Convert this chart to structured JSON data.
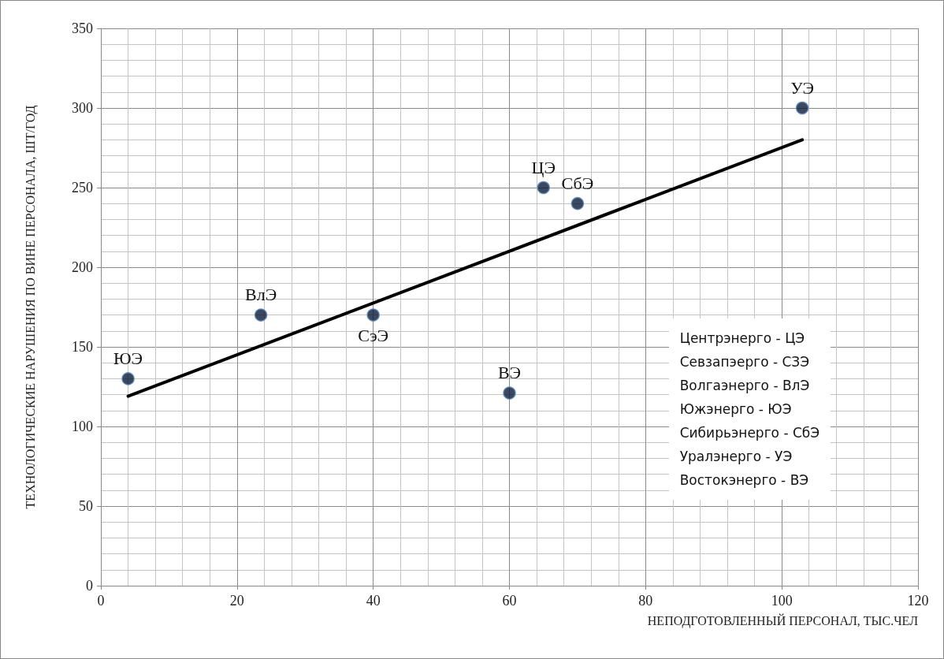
{
  "chart_data": {
    "type": "scatter",
    "xlabel": "НЕПОДГОТОВЛЕННЫЙ ПЕРСОНАЛ, ТЫС.ЧЕЛ",
    "ylabel": "ТЕХНОЛОГИЧЕСКИЕ НАРУШЕНИЯ ПО ВИНЕ ПЕРСОНАЛА, ШТ/ГОД",
    "xlim": [
      0,
      120
    ],
    "xticks": [
      0,
      20,
      40,
      60,
      80,
      100,
      120
    ],
    "ylim": [
      0,
      350
    ],
    "yticks": [
      0,
      50,
      100,
      150,
      200,
      250,
      300,
      350
    ],
    "grid": true,
    "marker": "circle",
    "series": [
      {
        "color": "#0b1a36",
        "x": [
          4,
          23.5,
          40,
          60,
          65,
          70,
          103
        ],
        "values": [
          130,
          170,
          170,
          121,
          250,
          240,
          300
        ]
      },
      {
        "type": "line",
        "color": "#000000",
        "x": [
          4,
          103
        ],
        "values": [
          119,
          280
        ],
        "marker": "none",
        "line_style": "solid"
      }
    ],
    "annotations": [
      {
        "text": "ЮЭ",
        "x": 4,
        "y": 130
      },
      {
        "text": "ВлЭ",
        "x": 23.5,
        "y": 170
      },
      {
        "text": "СэЭ",
        "x": 40,
        "y": 170
      },
      {
        "text": "ВЭ",
        "x": 60,
        "y": 121
      },
      {
        "text": "ЦЭ",
        "x": 65,
        "y": 250
      },
      {
        "text": "СбЭ",
        "x": 70,
        "y": 240
      },
      {
        "text": "УЭ",
        "x": 103,
        "y": 300
      },
      "Центрэнерго - ЦЭ",
      "Севзапэерго - СЗЭ",
      "Волгаэнерго - ВлЭ",
      "Южэнерго - ЮЭ",
      "Сибирьэнерго - СбЭ",
      "Уралэнерго - УЭ",
      "Востокэнерго - ВЭ"
    ]
  }
}
